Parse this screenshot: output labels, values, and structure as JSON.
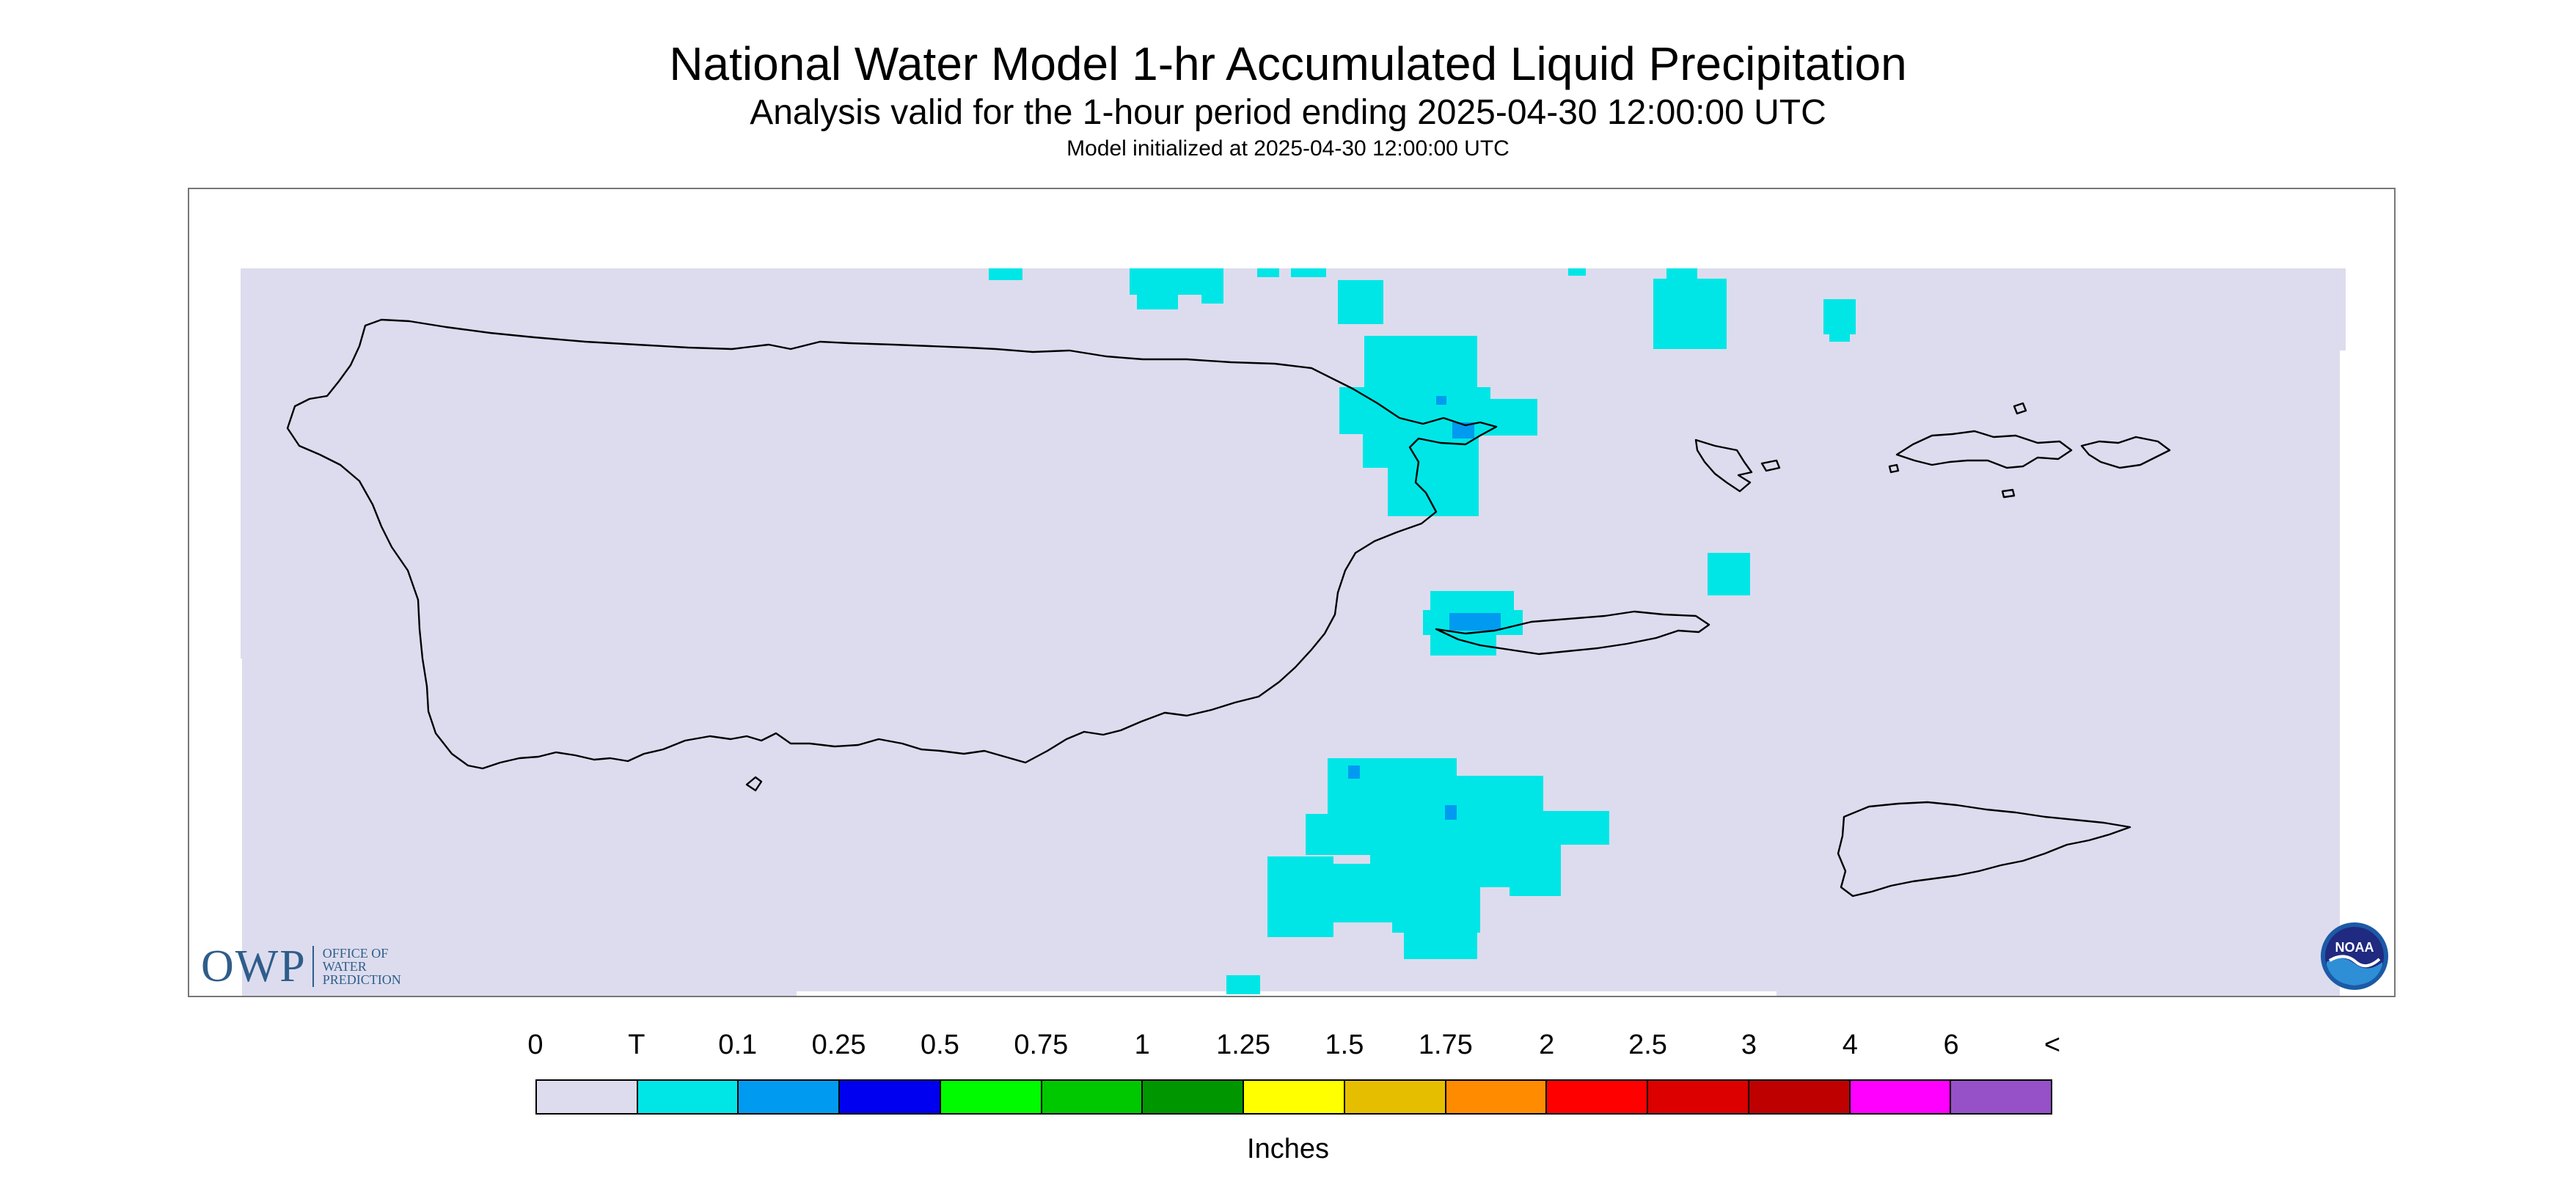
{
  "header": {
    "title": "National Water Model 1-hr Accumulated Liquid Precipitation",
    "subtitle": "Analysis valid for the 1-hour period ending 2025-04-30 12:00:00 UTC",
    "init": "Model initialized at 2025-04-30 12:00:00 UTC"
  },
  "colors": {
    "background_zero": "#dcdcee",
    "trace": "#00e6e6",
    "light": "#009bf0",
    "coast": "#000000"
  },
  "logos": {
    "owp_mark": "OWP",
    "owp_lines": [
      "OFFICE OF",
      "WATER",
      "PREDICTION"
    ],
    "noaa_text": "NOAA"
  },
  "legend": {
    "labels": [
      "0",
      "T",
      "0.1",
      "0.25",
      "0.5",
      "0.75",
      "1",
      "1.25",
      "1.5",
      "1.75",
      "2",
      "2.5",
      "3",
      "4",
      "6",
      "<"
    ],
    "colors": [
      "#dcdcee",
      "#00e6e6",
      "#009bf0",
      "#0000f0",
      "#00fa00",
      "#00c800",
      "#009600",
      "#ffff00",
      "#e6be00",
      "#ff8c00",
      "#ff0000",
      "#dc0000",
      "#be0000",
      "#ff00ff",
      "#9650c8"
    ],
    "units": "Inches"
  }
}
